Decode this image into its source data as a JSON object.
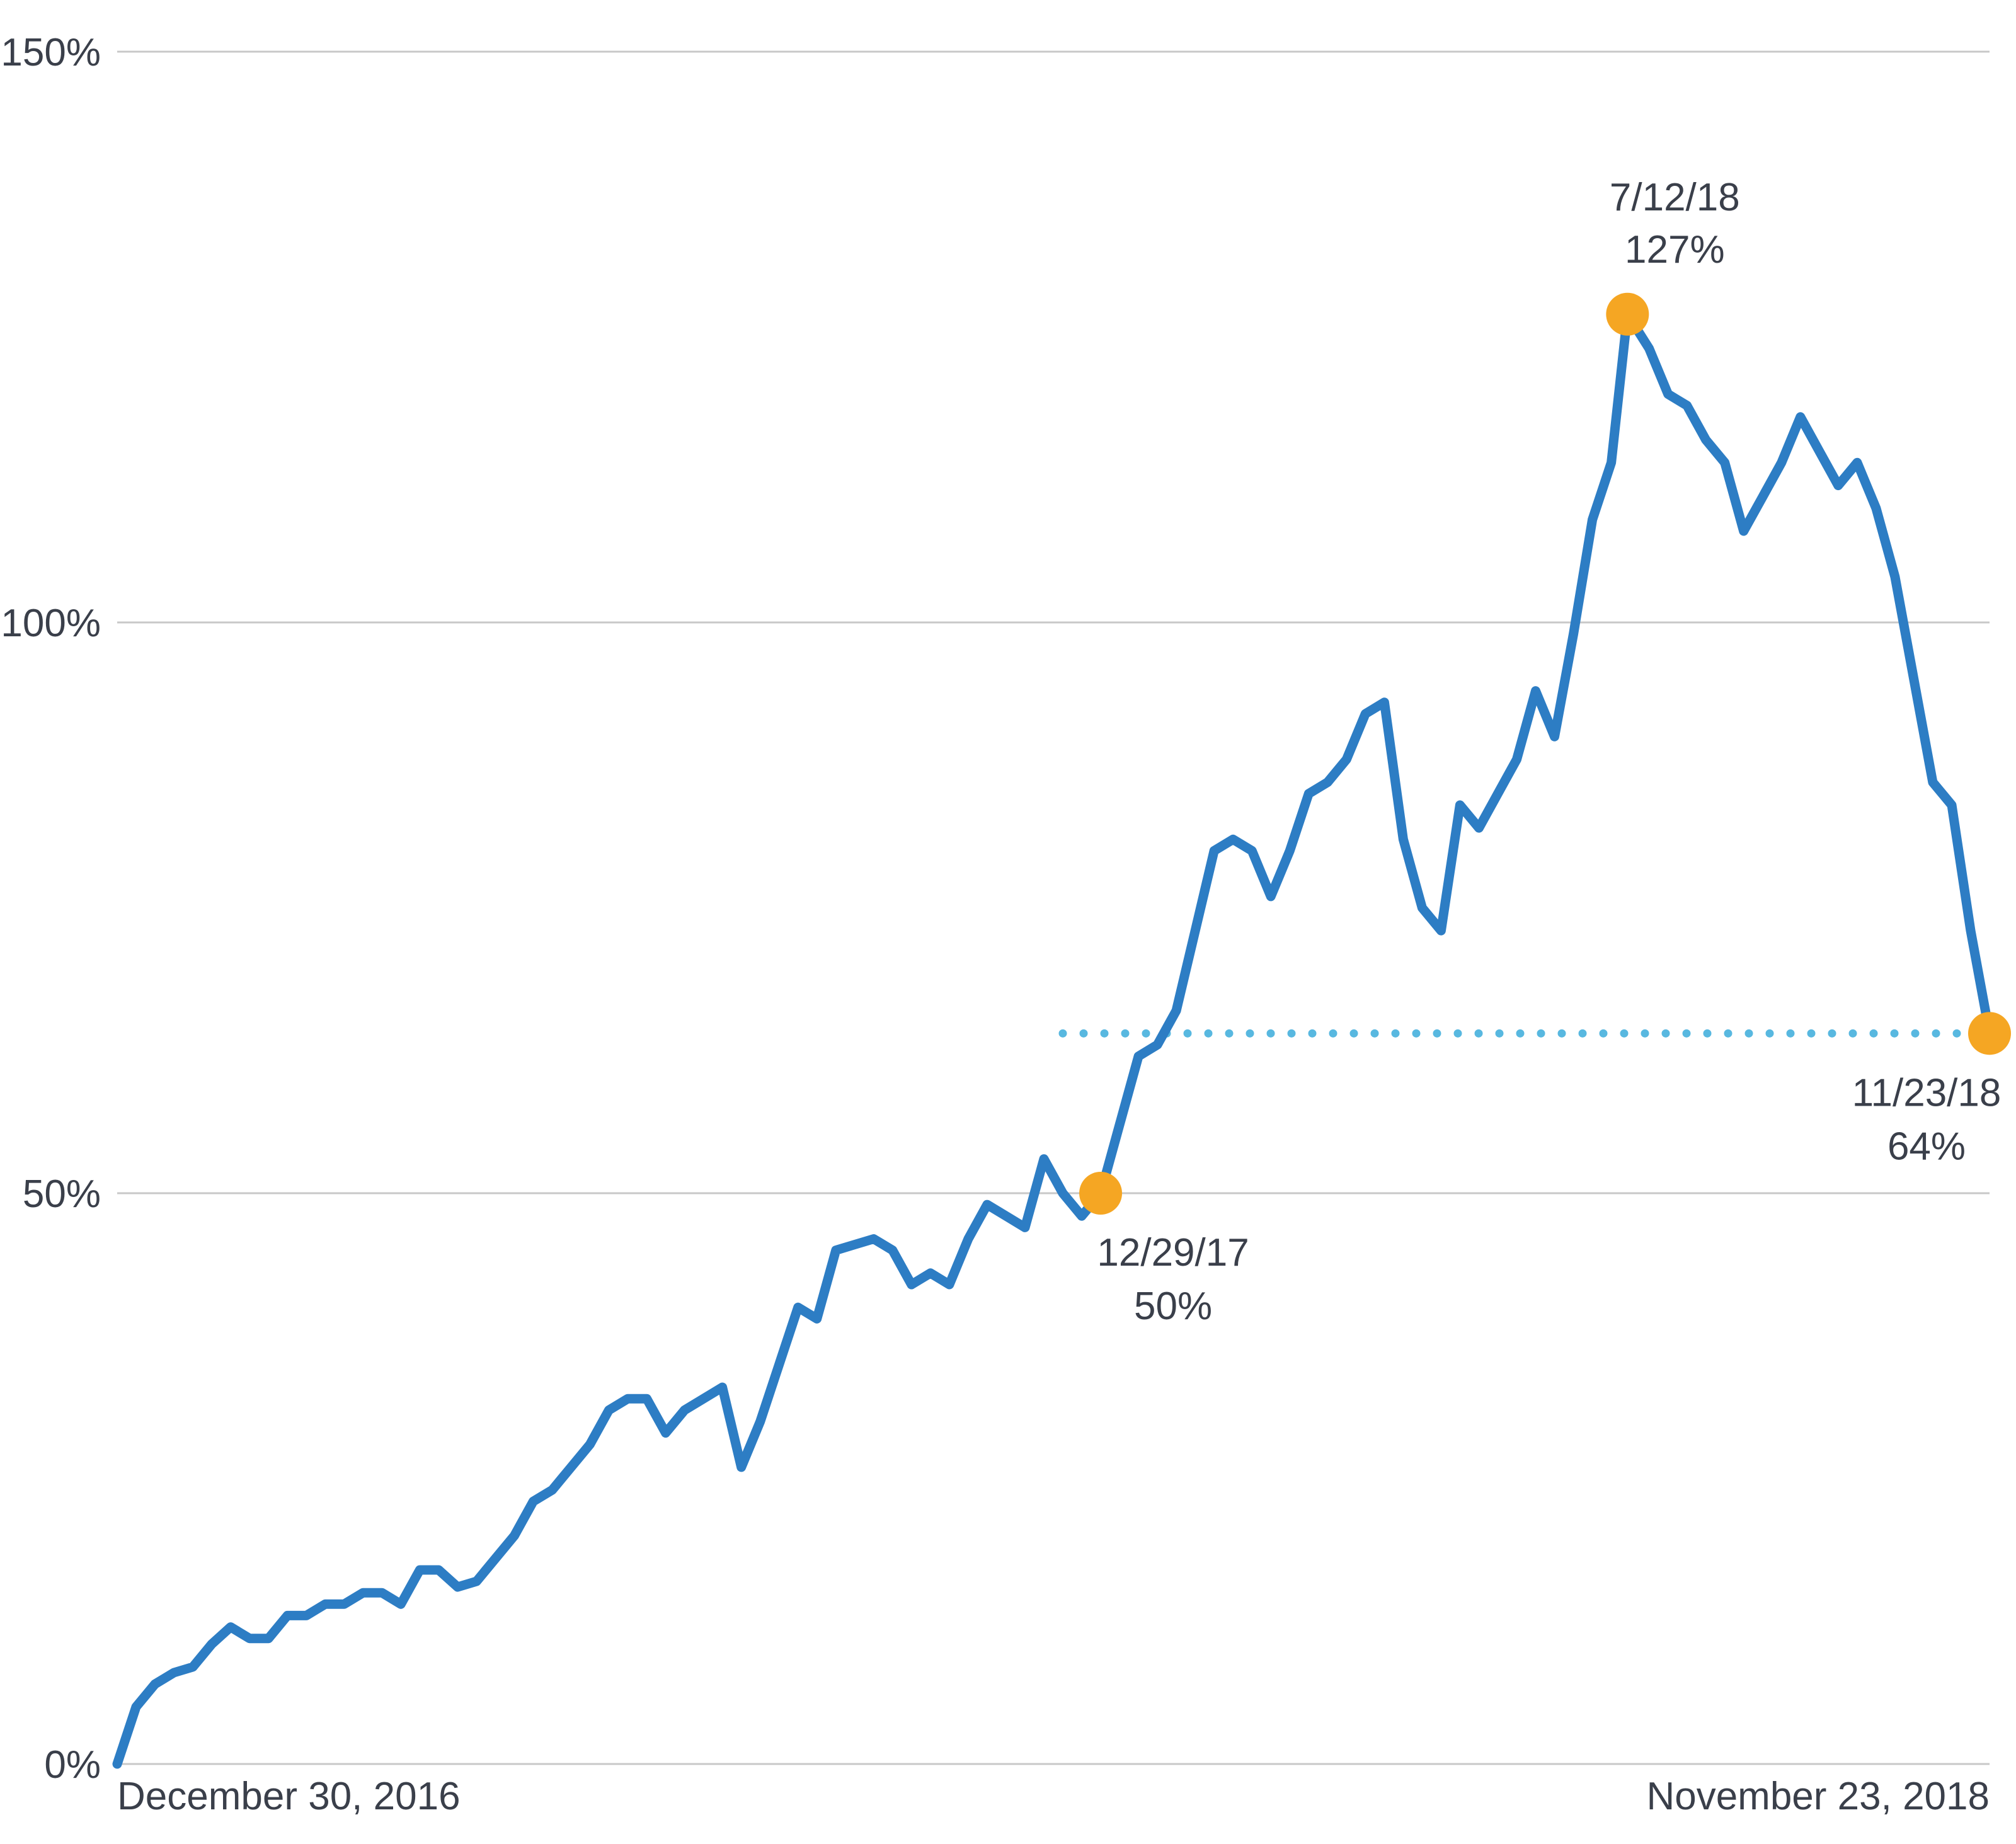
{
  "chart_data": {
    "type": "line",
    "title": "",
    "xlabel": "",
    "ylabel": "",
    "ylim": [
      0,
      150
    ],
    "yticks": [
      0,
      50,
      100,
      150
    ],
    "ytick_labels": [
      "0%",
      "50%",
      "100%",
      "150%"
    ],
    "x_range": [
      "2016-12-30",
      "2018-11-23"
    ],
    "x_end_labels": [
      "December 30, 2016",
      "November 23, 2018"
    ],
    "grid": "horizontal",
    "colors": {
      "line": "#2d7dc4",
      "marker": "#f5a623",
      "reference": "#58b8e0",
      "grid": "#c8c8c8",
      "text": "#3a3f4a"
    },
    "series": [
      {
        "x": [
          "2016-12-30",
          "2017-01-06",
          "2017-01-13",
          "2017-01-20",
          "2017-01-27",
          "2017-02-03",
          "2017-02-10",
          "2017-02-17",
          "2017-02-24",
          "2017-03-03",
          "2017-03-10",
          "2017-03-17",
          "2017-03-24",
          "2017-03-31",
          "2017-04-07",
          "2017-04-14",
          "2017-04-21",
          "2017-04-28",
          "2017-05-05",
          "2017-05-12",
          "2017-05-19",
          "2017-05-26",
          "2017-06-02",
          "2017-06-09",
          "2017-06-16",
          "2017-06-23",
          "2017-06-30",
          "2017-07-07",
          "2017-07-14",
          "2017-07-21",
          "2017-07-28",
          "2017-08-04",
          "2017-08-11",
          "2017-08-18",
          "2017-08-25",
          "2017-09-01",
          "2017-09-08",
          "2017-09-15",
          "2017-09-22",
          "2017-09-29",
          "2017-10-06",
          "2017-10-13",
          "2017-10-20",
          "2017-10-27",
          "2017-11-03",
          "2017-11-10",
          "2017-11-17",
          "2017-11-24",
          "2017-12-01",
          "2017-12-08",
          "2017-12-15",
          "2017-12-22",
          "2017-12-29",
          "2018-01-05",
          "2018-01-12",
          "2018-01-19",
          "2018-01-26",
          "2018-02-02",
          "2018-02-09",
          "2018-02-16",
          "2018-02-23",
          "2018-03-02",
          "2018-03-09",
          "2018-03-16",
          "2018-03-23",
          "2018-03-30",
          "2018-04-06",
          "2018-04-13",
          "2018-04-20",
          "2018-04-27",
          "2018-05-04",
          "2018-05-11",
          "2018-05-18",
          "2018-05-25",
          "2018-06-01",
          "2018-06-08",
          "2018-06-15",
          "2018-06-22",
          "2018-06-29",
          "2018-07-06",
          "2018-07-12",
          "2018-07-20",
          "2018-07-27",
          "2018-08-03",
          "2018-08-10",
          "2018-08-17",
          "2018-08-24",
          "2018-08-31",
          "2018-09-07",
          "2018-09-14",
          "2018-09-21",
          "2018-09-28",
          "2018-10-05",
          "2018-10-12",
          "2018-10-19",
          "2018-10-26",
          "2018-11-02",
          "2018-11-09",
          "2018-11-16",
          "2018-11-23"
        ],
        "y": [
          0,
          5,
          7,
          8,
          8.5,
          10.5,
          12,
          11,
          11,
          13,
          13,
          14,
          14,
          15,
          15,
          14,
          17,
          17,
          15.5,
          16,
          18,
          20,
          23,
          24,
          26,
          28,
          31,
          32,
          32,
          29,
          31,
          32,
          33,
          26,
          30,
          35,
          40,
          39,
          45,
          45.5,
          46,
          45,
          42,
          43,
          42,
          46,
          49,
          48,
          47,
          53,
          50,
          48,
          50,
          56,
          62,
          63,
          66,
          73,
          80,
          81,
          80,
          76,
          80,
          85,
          86,
          88,
          92,
          93,
          81,
          75,
          73,
          84,
          82,
          85,
          88,
          94,
          90,
          99,
          109,
          114,
          127,
          124,
          120,
          119,
          116,
          114,
          108,
          111,
          114,
          118,
          115,
          112,
          114,
          110,
          104,
          95,
          86,
          84,
          73,
          64
        ]
      }
    ],
    "annotations": [
      {
        "date_label": "12/29/17",
        "value_label": "50%",
        "x": "2017-12-29",
        "y": 50
      },
      {
        "date_label": "7/12/18",
        "value_label": "127%",
        "x": "2018-07-12",
        "y": 127
      },
      {
        "date_label": "11/23/18",
        "value_label": "64%",
        "x": "2018-11-23",
        "y": 64
      }
    ],
    "reference_line": {
      "y": 64,
      "x_start": "2017-12-15",
      "x_end": "2018-11-23",
      "style": "dotted"
    }
  }
}
